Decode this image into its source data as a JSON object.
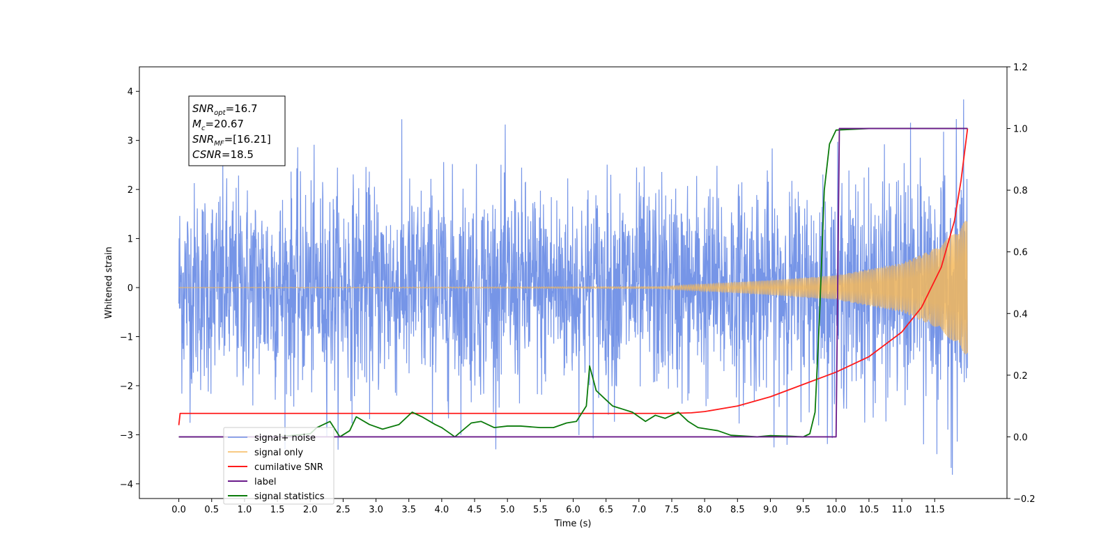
{
  "chart_data": {
    "type": "line",
    "title": "",
    "xlabel": "Time (s)",
    "ylabel": "Whitened strain",
    "xlim": [
      -0.6,
      12.6
    ],
    "ylim": [
      -4.3,
      4.5
    ],
    "y2lim": [
      -0.2,
      1.2
    ],
    "xticks": [
      "0.0",
      "0.5",
      "1.0",
      "1.5",
      "2.0",
      "2.5",
      "3.0",
      "3.5",
      "4.0",
      "4.5",
      "5.0",
      "5.5",
      "6.0",
      "6.5",
      "7.0",
      "7.5",
      "8.0",
      "8.5",
      "9.0",
      "9.5",
      "10.0",
      "10.5",
      "11.0",
      "11.5"
    ],
    "yticks": [
      "−4",
      "−3",
      "−2",
      "−1",
      "0",
      "1",
      "2",
      "3",
      "4"
    ],
    "y2ticks": [
      "−0.2",
      "0.0",
      "0.2",
      "0.4",
      "0.6",
      "0.8",
      "1.0",
      "1.2"
    ],
    "legend_position": "lower-left",
    "annotation": {
      "lines": [
        {
          "base": "SNR",
          "sub": "opt",
          "rest": "=16.7"
        },
        {
          "base": "M",
          "sub": "c",
          "rest": "=20.67"
        },
        {
          "base": "SNR",
          "sub": "MF",
          "rest": "=[16.21]"
        },
        {
          "base": "CSNR",
          "sub": "",
          "rest": "=18.5"
        }
      ]
    },
    "series": [
      {
        "name": "signal+ noise",
        "color": "#6f8fe6",
        "axis": "left",
        "style": "noise",
        "x_range": [
          0.0,
          12.0
        ],
        "envelope": 2.6
      },
      {
        "name": "signal only",
        "color": "#f5b85a",
        "axis": "left",
        "style": "chirp",
        "x_range": [
          0.0,
          12.0
        ],
        "amplitude_points": [
          [
            0.0,
            0.0
          ],
          [
            7.3,
            0.02
          ],
          [
            9.0,
            0.15
          ],
          [
            10.0,
            0.25
          ],
          [
            11.0,
            0.5
          ],
          [
            11.5,
            0.8
          ],
          [
            12.0,
            1.4
          ]
        ]
      },
      {
        "name": "cumilative SNR",
        "color": "#ff1a1a",
        "axis": "right",
        "style": "line",
        "points": [
          [
            0.0,
            0.038
          ],
          [
            0.02,
            0.076
          ],
          [
            7.5,
            0.076
          ],
          [
            7.8,
            0.078
          ],
          [
            8.0,
            0.082
          ],
          [
            8.5,
            0.1
          ],
          [
            9.0,
            0.13
          ],
          [
            9.5,
            0.17
          ],
          [
            10.0,
            0.21
          ],
          [
            10.5,
            0.26
          ],
          [
            11.0,
            0.34
          ],
          [
            11.3,
            0.42
          ],
          [
            11.6,
            0.55
          ],
          [
            11.8,
            0.7
          ],
          [
            11.9,
            0.83
          ],
          [
            12.0,
            1.0
          ]
        ]
      },
      {
        "name": "label",
        "color": "#6a1a8a",
        "axis": "right",
        "style": "line",
        "points": [
          [
            0.0,
            0.0
          ],
          [
            10.0,
            0.0
          ],
          [
            10.05,
            1.0
          ],
          [
            12.0,
            1.0
          ]
        ]
      },
      {
        "name": "signal statistics",
        "color": "#0a7a0a",
        "axis": "right",
        "style": "line",
        "points": [
          [
            0.0,
            0.0
          ],
          [
            1.5,
            0.0
          ],
          [
            2.0,
            0.01
          ],
          [
            2.1,
            0.03
          ],
          [
            2.3,
            0.05
          ],
          [
            2.45,
            0.0
          ],
          [
            2.6,
            0.02
          ],
          [
            2.7,
            0.065
          ],
          [
            2.9,
            0.04
          ],
          [
            3.1,
            0.025
          ],
          [
            3.35,
            0.04
          ],
          [
            3.55,
            0.08
          ],
          [
            3.7,
            0.065
          ],
          [
            3.9,
            0.04
          ],
          [
            4.0,
            0.03
          ],
          [
            4.2,
            0.0
          ],
          [
            4.45,
            0.045
          ],
          [
            4.6,
            0.05
          ],
          [
            4.8,
            0.03
          ],
          [
            5.0,
            0.035
          ],
          [
            5.2,
            0.035
          ],
          [
            5.5,
            0.03
          ],
          [
            5.7,
            0.03
          ],
          [
            5.9,
            0.045
          ],
          [
            6.05,
            0.05
          ],
          [
            6.2,
            0.1
          ],
          [
            6.25,
            0.23
          ],
          [
            6.35,
            0.15
          ],
          [
            6.5,
            0.12
          ],
          [
            6.6,
            0.1
          ],
          [
            6.75,
            0.09
          ],
          [
            6.9,
            0.08
          ],
          [
            7.1,
            0.05
          ],
          [
            7.25,
            0.07
          ],
          [
            7.4,
            0.06
          ],
          [
            7.6,
            0.08
          ],
          [
            7.75,
            0.05
          ],
          [
            7.9,
            0.03
          ],
          [
            8.05,
            0.025
          ],
          [
            8.2,
            0.02
          ],
          [
            8.4,
            0.005
          ],
          [
            8.8,
            0.0
          ],
          [
            9.0,
            0.004
          ],
          [
            9.3,
            0.002
          ],
          [
            9.5,
            0.0
          ],
          [
            9.6,
            0.01
          ],
          [
            9.68,
            0.08
          ],
          [
            9.75,
            0.4
          ],
          [
            9.82,
            0.8
          ],
          [
            9.9,
            0.95
          ],
          [
            10.0,
            0.995
          ],
          [
            10.5,
            1.0
          ],
          [
            12.0,
            1.0
          ]
        ]
      }
    ]
  }
}
